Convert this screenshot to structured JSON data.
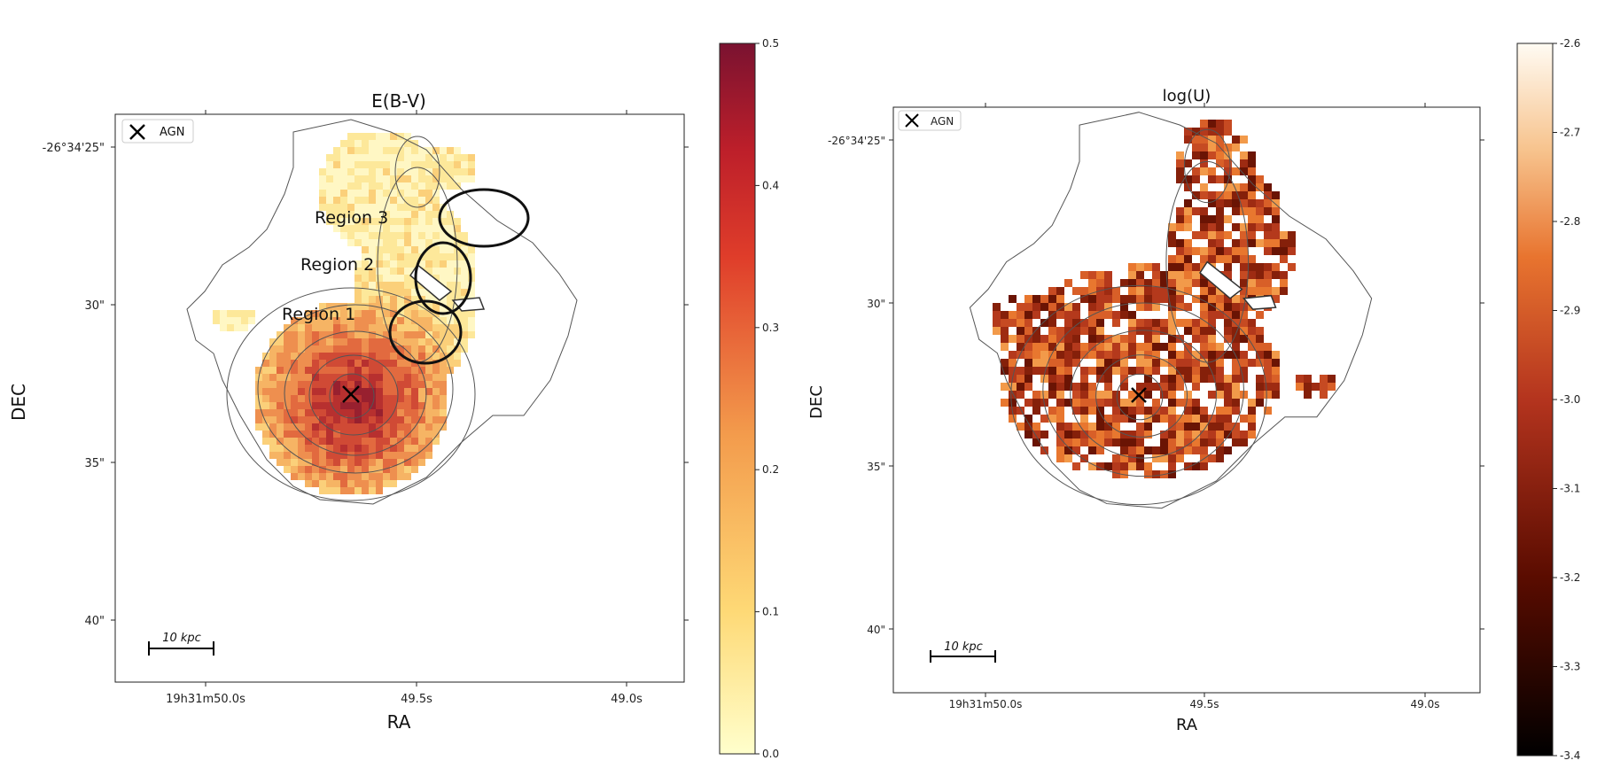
{
  "chart_data": [
    {
      "type": "heatmap",
      "title": "E(B-V)",
      "xlabel": "RA",
      "ylabel": "DEC",
      "x_ticks": [
        "19h31m50.0s",
        "49.5s",
        "49.0s"
      ],
      "y_ticks": [
        "-26°34'25\"",
        "30\"",
        "35\"",
        "40\""
      ],
      "colorbar": {
        "colormap": "YlOrRd",
        "range": [
          0.0,
          0.5
        ],
        "ticks": [
          "0.0",
          "0.1",
          "0.2",
          "0.3",
          "0.4",
          "0.5"
        ]
      },
      "legend": {
        "position": "upper-left",
        "entries": [
          {
            "marker": "x",
            "label": "AGN"
          }
        ]
      },
      "annotations": [
        "Region 1",
        "Region 2",
        "Region 3"
      ],
      "scale_bar": "10 kpc",
      "peak_value_near_agn": 0.45
    },
    {
      "type": "heatmap",
      "title": "log(U)",
      "xlabel": "RA",
      "ylabel": "DEC",
      "x_ticks": [
        "19h31m50.0s",
        "49.5s",
        "49.0s"
      ],
      "y_ticks": [
        "-26°34'25\"",
        "30\"",
        "35\"",
        "40\""
      ],
      "colorbar": {
        "colormap": "gist_heat",
        "range": [
          -3.4,
          -2.6
        ],
        "ticks": [
          "-3.4",
          "-3.3",
          "-3.2",
          "-3.1",
          "-3.0",
          "-2.9",
          "-2.8",
          "-2.7",
          "-2.6"
        ]
      },
      "legend": {
        "position": "upper-left",
        "entries": [
          {
            "marker": "x",
            "label": "AGN"
          }
        ]
      },
      "scale_bar": "10 kpc",
      "typical_value": -3.05
    }
  ]
}
